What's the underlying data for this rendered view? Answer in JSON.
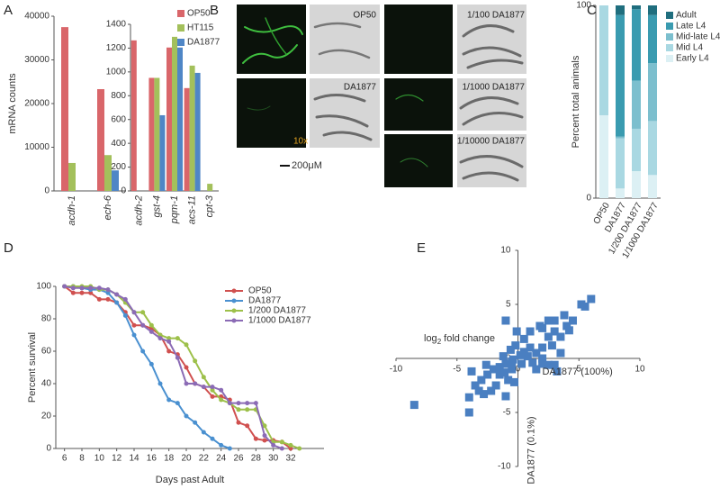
{
  "panel_labels": [
    "A",
    "B",
    "C",
    "D",
    "E"
  ],
  "micrographs": {
    "labels": [
      "OP50",
      "DA1877",
      "1/100 DA1877",
      "1/1000 DA1877",
      "1/10000 DA1877"
    ],
    "magnification": "10x",
    "scale_bar": "200μM"
  },
  "chart_data": [
    {
      "type": "bar",
      "ylabel": "mRNA counts",
      "categories": [
        "acdh-1",
        "ech-6"
      ],
      "series": [
        {
          "color": "#d9666a",
          "values": [
            37500,
            23300
          ]
        },
        {
          "color": "#a3c05b",
          "values": [
            6400,
            8200
          ]
        },
        {
          "color": "#4f86c6",
          "values": [
            0,
            4700
          ]
        }
      ],
      "ylim": [
        0,
        40000
      ],
      "yticks": [
        0,
        10000,
        20000,
        30000,
        40000
      ]
    },
    {
      "type": "bar",
      "categories": [
        "acdh-2",
        "gst-4",
        "pqm-1",
        "acs-11",
        "cpt-3"
      ],
      "series": [
        {
          "name": "OP50",
          "color": "#d9666a",
          "values": [
            1265,
            950,
            1205,
            864,
            0
          ]
        },
        {
          "name": "HT115",
          "color": "#a3c05b",
          "values": [
            0,
            950,
            1295,
            1053,
            60
          ]
        },
        {
          "name": "DA1877",
          "color": "#4f86c6",
          "values": [
            0,
            636,
            1205,
            992,
            0
          ]
        }
      ],
      "ylim": [
        0,
        1400
      ],
      "yticks": [
        0,
        200,
        400,
        600,
        800,
        1000,
        1200,
        1400
      ]
    },
    {
      "type": "stacked_bar",
      "ylabel": "Percent total animals",
      "categories": [
        "OP50",
        "DA1877",
        "1/200 DA1877",
        "1/1000 DA1877"
      ],
      "series": [
        {
          "name": "Early L4",
          "color": "#dcf0f4",
          "values": [
            43,
            5,
            14,
            12
          ]
        },
        {
          "name": "Mid L4",
          "color": "#a9d8e2",
          "values": [
            57,
            26,
            22,
            28
          ]
        },
        {
          "name": "Mid-late L4",
          "color": "#7cbfce",
          "values": [
            0,
            1,
            25,
            30
          ]
        },
        {
          "name": "Late L4",
          "color": "#3a9bb0",
          "values": [
            0,
            63,
            37,
            25
          ]
        },
        {
          "name": "Adult",
          "color": "#1f6e7e",
          "values": [
            0,
            5,
            2,
            5
          ]
        }
      ],
      "ylim": [
        0,
        100
      ],
      "yticks": [
        0,
        100
      ]
    },
    {
      "type": "line",
      "xlabel": "Days past Adult",
      "ylabel": "Percent survival",
      "x": [
        6,
        7,
        8,
        9,
        10,
        11,
        12,
        13,
        14,
        15,
        16,
        17,
        18,
        19,
        20,
        21,
        22,
        23,
        24,
        25,
        26,
        27,
        28,
        29,
        30,
        31,
        32,
        33
      ],
      "series": [
        {
          "name": "OP50",
          "color": "#d0504f",
          "values": [
            100,
            96,
            96,
            96,
            92,
            92,
            90,
            84,
            76,
            76,
            74,
            70,
            60,
            58,
            50,
            40,
            38,
            32,
            32,
            30,
            16,
            14,
            6,
            5,
            5,
            4,
            0,
            null
          ]
        },
        {
          "name": "DA1877",
          "color": "#4a90d0",
          "values": [
            100,
            100,
            99,
            98,
            98,
            96,
            90,
            82,
            70,
            60,
            52,
            40,
            30,
            28,
            20,
            16,
            10,
            6,
            2,
            0,
            null,
            null,
            null,
            null,
            null,
            null,
            null,
            null
          ]
        },
        {
          "name": "1/200 DA1877",
          "color": "#9dc04a",
          "values": [
            100,
            100,
            100,
            100,
            98,
            98,
            95,
            90,
            84,
            84,
            76,
            70,
            68,
            68,
            64,
            54,
            44,
            36,
            30,
            28,
            24,
            24,
            24,
            14,
            4,
            4,
            2,
            0
          ]
        },
        {
          "name": "1/1000 DA1877",
          "color": "#8b6bb5",
          "values": [
            100,
            99,
            99,
            99,
            99,
            98,
            95,
            92,
            84,
            76,
            72,
            68,
            66,
            56,
            40,
            40,
            38,
            38,
            36,
            28,
            28,
            28,
            28,
            8,
            2,
            0,
            null,
            null
          ]
        }
      ],
      "xlim": [
        5,
        35
      ],
      "xticks": [
        6,
        8,
        10,
        12,
        14,
        16,
        18,
        20,
        22,
        24,
        26,
        28,
        30,
        32
      ],
      "ylim": [
        0,
        100
      ],
      "yticks": [
        0,
        20,
        40,
        60,
        80,
        100
      ]
    },
    {
      "type": "scatter",
      "xlabel": "DA1877 (100%)",
      "ylabel": "DA1877 (0.1%)",
      "annotation": {
        "text": "log",
        "subscript": "2",
        "rest": "fold change"
      },
      "color": "#4a7fc1",
      "x": [
        -8.5,
        -4,
        -4,
        -3.5,
        -3,
        -2.5,
        -2,
        -1.5,
        -1,
        -0.5,
        -1.8,
        -2.2,
        -1,
        -0.8,
        -1.5,
        -0.5,
        -0.3,
        -3.8,
        -2.8,
        -1.2,
        -0.6,
        -0.2,
        -0.1,
        -1,
        0.3,
        0.5,
        1.2,
        2,
        2.5,
        3,
        2,
        1.5,
        2.5,
        3,
        3.5,
        2,
        1,
        4,
        4.5,
        3,
        3.8,
        2.5,
        5.5,
        6,
        5.2,
        1.8,
        0.5,
        3.2,
        2,
        1,
        0.2,
        -0.4,
        1.5,
        -2.6,
        -3.2,
        -1.1,
        0.8,
        4.2,
        3.5,
        2.8
      ],
      "y": [
        -4.3,
        -5,
        -3.6,
        -2.5,
        -2,
        -1.5,
        -1,
        -0.8,
        -0.5,
        -0.3,
        -2.5,
        -3,
        -3.5,
        -2,
        -1.5,
        -1,
        -2.2,
        -1.2,
        -3.3,
        0.2,
        0.8,
        1.2,
        2.5,
        3.5,
        -0.5,
        0.6,
        -0.4,
        -0.5,
        -0.6,
        -0.6,
        1,
        0.5,
        2,
        2.5,
        2,
        2.8,
        2.5,
        3,
        3.5,
        3.5,
        4,
        3.5,
        4.8,
        5.5,
        5,
        3,
        1.8,
        -1.2,
        0,
        1,
        0.3,
        -0.1,
        -1,
        -0.6,
        -3,
        -1.3,
        0.2,
        2.6,
        0.5,
        1.2
      ],
      "xlim": [
        -10,
        10
      ],
      "xticks": [
        -10,
        -5,
        0,
        5,
        10
      ],
      "ylim": [
        -10,
        10
      ],
      "yticks": [
        -10,
        -5,
        0,
        5,
        10
      ]
    }
  ]
}
